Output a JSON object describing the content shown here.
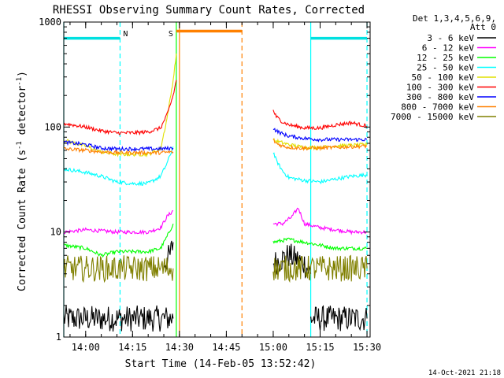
{
  "chart_data": {
    "type": "line",
    "title": "RHESSI Observing Summary Count Rates, Corrected",
    "xlabel": "Start Time (14-Feb-05 13:52:42)",
    "ylabel_main": "Corrected Count Rate (s",
    "ylabel_sup1": "-1",
    "ylabel_mid": " detector",
    "ylabel_sup2": "-1",
    "ylabel_end": ")",
    "y_scale": "log",
    "ylim": [
      1,
      1000
    ],
    "xlim": [
      "13:53",
      "15:31"
    ],
    "x_ticks": [
      "14:00",
      "14:15",
      "14:30",
      "14:45",
      "15:00",
      "15:15",
      "15:30"
    ],
    "y_ticks": [
      "1",
      "10",
      "100",
      "1000"
    ],
    "footer": "14-Oct-2021 21:18",
    "legend_header": [
      "Det 1,3,4,5,6,9,",
      "Att 0"
    ],
    "series": [
      {
        "name": "3 - 6 keV",
        "color": "#000000",
        "segments": [
          {
            "t": [
              "13:53",
              "14:00",
              "14:05",
              "14:10",
              "14:15",
              "14:20",
              "14:25",
              "14:27",
              "14:28"
            ],
            "v": [
              1.5,
              1.5,
              1.5,
              1.5,
              1.5,
              1.5,
              1.5,
              1.5,
              1.5
            ]
          },
          {
            "t": [
              "14:25",
              "14:27",
              "14:28"
            ],
            "v": [
              5,
              6,
              8
            ]
          },
          {
            "t": [
              "15:00",
              "15:05",
              "15:10",
              "15:12"
            ],
            "v": [
              5,
              6,
              5,
              4
            ]
          },
          {
            "t": [
              "15:12",
              "15:15",
              "15:20",
              "15:25",
              "15:30"
            ],
            "v": [
              1.5,
              1.5,
              1.5,
              1.5,
              1.5
            ]
          }
        ]
      },
      {
        "name": "6 - 12 keV",
        "color": "#ff00ff",
        "segments": [
          {
            "t": [
              "13:53",
              "14:00",
              "14:10",
              "14:15",
              "14:20",
              "14:24",
              "14:26",
              "14:28"
            ],
            "v": [
              10,
              10.5,
              10,
              10,
              10,
              11,
              14,
              16
            ]
          },
          {
            "t": [
              "15:00",
              "15:03",
              "15:06",
              "15:08",
              "15:10",
              "15:15",
              "15:20",
              "15:25",
              "15:30"
            ],
            "v": [
              12,
              12,
              14,
              17,
              12,
              11,
              10.5,
              10,
              10
            ]
          }
        ]
      },
      {
        "name": "12 - 25 keV",
        "color": "#00ff00",
        "segments": [
          {
            "t": [
              "13:53",
              "14:00",
              "14:05",
              "14:10",
              "14:15",
              "14:20",
              "14:24",
              "14:26",
              "14:28"
            ],
            "v": [
              7.5,
              7,
              6,
              6.5,
              6.5,
              6.5,
              7,
              9,
              12
            ]
          },
          {
            "t": [
              "15:00",
              "15:05",
              "15:10",
              "15:15",
              "15:20",
              "15:25",
              "15:30"
            ],
            "v": [
              8,
              8.5,
              8,
              7.5,
              7,
              7,
              7
            ]
          }
        ]
      },
      {
        "name": "25 - 50 keV",
        "color": "#00ffff",
        "segments": [
          {
            "t": [
              "13:53",
              "14:00",
              "14:05",
              "14:10",
              "14:15",
              "14:20",
              "14:24",
              "14:26",
              "14:28"
            ],
            "v": [
              40,
              37,
              34,
              30,
              29,
              29,
              34,
              45,
              65
            ]
          },
          {
            "t": [
              "15:00",
              "15:01",
              "15:03",
              "15:05",
              "15:10",
              "15:15",
              "15:20",
              "15:25",
              "15:30"
            ],
            "v": [
              58,
              48,
              38,
              33,
              31,
              30,
              32,
              34,
              35
            ]
          }
        ]
      },
      {
        "name": "50 - 100 keV",
        "color": "#e0e000",
        "segments": [
          {
            "t": [
              "13:53",
              "14:00",
              "14:05",
              "14:10",
              "14:15",
              "14:20",
              "14:24",
              "14:26",
              "14:28",
              "14:29"
            ],
            "v": [
              75,
              66,
              58,
              55,
              55,
              55,
              62,
              120,
              280,
              500
            ]
          },
          {
            "t": [
              "15:00",
              "15:05",
              "15:10",
              "15:15",
              "15:20",
              "15:25",
              "15:30"
            ],
            "v": [
              75,
              68,
              64,
              64,
              66,
              67,
              68
            ]
          }
        ]
      },
      {
        "name": "100 - 300 keV",
        "color": "#ff0000",
        "segments": [
          {
            "t": [
              "13:53",
              "14:00",
              "14:05",
              "14:10",
              "14:15",
              "14:20",
              "14:24",
              "14:26",
              "14:28",
              "14:29"
            ],
            "v": [
              108,
              100,
              92,
              88,
              88,
              90,
              98,
              130,
              200,
              280
            ]
          },
          {
            "t": [
              "15:00",
              "15:01",
              "15:03",
              "15:05",
              "15:10",
              "15:15",
              "15:20",
              "15:25",
              "15:30"
            ],
            "v": [
              145,
              125,
              112,
              105,
              98,
              98,
              105,
              110,
              102
            ]
          }
        ]
      },
      {
        "name": "300 - 800 keV",
        "color": "#0000ff",
        "segments": [
          {
            "t": [
              "13:53",
              "14:00",
              "14:05",
              "14:10",
              "14:15",
              "14:20",
              "14:24",
              "14:28"
            ],
            "v": [
              72,
              68,
              63,
              62,
              62,
              62,
              62,
              63
            ]
          },
          {
            "t": [
              "15:00",
              "15:01",
              "15:03",
              "15:05",
              "15:10",
              "15:15",
              "15:20",
              "15:25",
              "15:30"
            ],
            "v": [
              98,
              92,
              86,
              82,
              78,
              76,
              76,
              76,
              76
            ]
          }
        ]
      },
      {
        "name": "800 - 7000 keV",
        "color": "#ff8000",
        "segments": [
          {
            "t": [
              "13:53",
              "14:00",
              "14:05",
              "14:10",
              "14:15",
              "14:20",
              "14:24",
              "14:28"
            ],
            "v": [
              62,
              60,
              58,
              57,
              57,
              57,
              57,
              58
            ]
          },
          {
            "t": [
              "15:00",
              "15:01",
              "15:03",
              "15:05",
              "15:10",
              "15:15",
              "15:20",
              "15:25",
              "15:30"
            ],
            "v": [
              75,
              70,
              66,
              64,
              63,
              63,
              64,
              65,
              66
            ]
          }
        ]
      },
      {
        "name": "7000 - 15000 keV",
        "color": "#808000",
        "segments": [
          {
            "t": [
              "13:53",
              "14:00",
              "14:05",
              "14:10",
              "14:15",
              "14:20",
              "14:24",
              "14:28"
            ],
            "v": [
              4.5,
              4.5,
              4.5,
              4.5,
              4.5,
              4.5,
              4.5,
              4.5
            ]
          },
          {
            "t": [
              "15:00",
              "15:05",
              "15:10",
              "15:15",
              "15:20",
              "15:25",
              "15:30"
            ],
            "v": [
              4.5,
              4.5,
              4.5,
              4.5,
              4.5,
              4.5,
              4.5
            ]
          }
        ]
      }
    ],
    "annotations": [
      {
        "label": "N",
        "color": "#00e0e0",
        "type": "night",
        "periods": [
          [
            "13:53",
            "14:11"
          ],
          [
            "15:12",
            "15:30"
          ]
        ],
        "bar_level": 700
      },
      {
        "label": "S",
        "color": "#ff8000",
        "type": "saa",
        "periods": [
          [
            "14:29",
            "14:50"
          ]
        ],
        "bar_level": 820
      }
    ],
    "vlines": [
      {
        "t": "14:29",
        "color": "#00ff00",
        "style": "solid"
      },
      {
        "t": "14:30",
        "color": "#ff8000",
        "style": "solid"
      },
      {
        "t": "14:50",
        "color": "#ff8000",
        "style": "dashed"
      },
      {
        "t": "13:53",
        "color": "#00ffff",
        "style": "solid"
      },
      {
        "t": "14:11",
        "color": "#00ffff",
        "style": "dashed"
      },
      {
        "t": "15:12",
        "color": "#00ffff",
        "style": "solid"
      },
      {
        "t": "15:30",
        "color": "#00ffff",
        "style": "dashed"
      }
    ]
  }
}
